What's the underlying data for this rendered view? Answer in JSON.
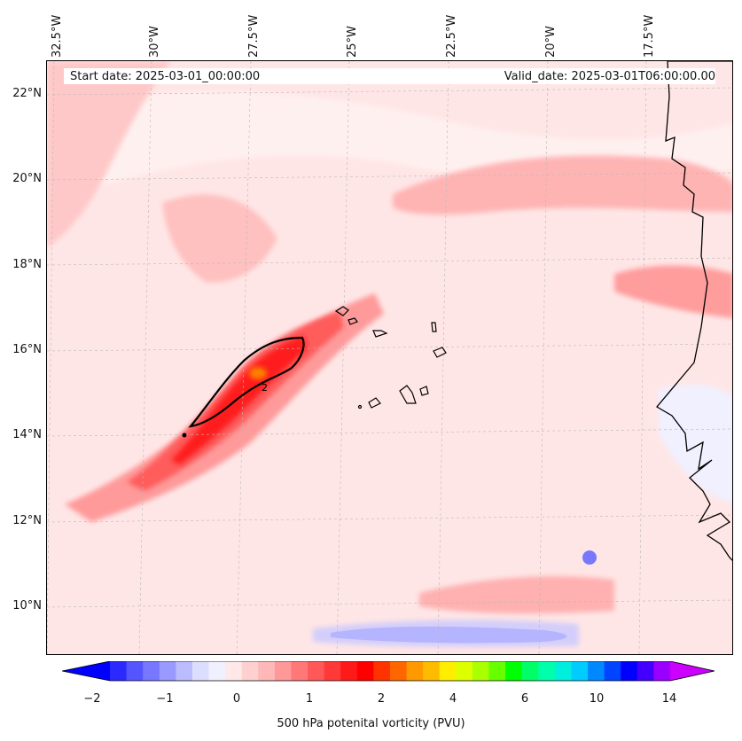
{
  "map": {
    "longitude_labels": [
      "32.5°W",
      "30°W",
      "27.5°W",
      "25°W",
      "22.5°W",
      "20°W",
      "17.5°W"
    ],
    "latitude_labels": [
      "22°N",
      "20°N",
      "18°N",
      "16°N",
      "14°N",
      "12°N",
      "10°N"
    ],
    "contour_label": "2",
    "colors": {
      "land_coast": "#000000",
      "background": "#ffecec"
    }
  },
  "header": {
    "start_date": "Start date: 2025-03-01_00:00:00",
    "valid_date": "Valid_date: 2025-03-01T06:00:00.00"
  },
  "colorbar": {
    "ticks": [
      "−2",
      "−1",
      "0",
      "1",
      "2",
      "4",
      "6",
      "10",
      "14"
    ],
    "label": "500 hPa potenital vorticity (PVU)",
    "colors": [
      "#0000ff",
      "#2a2aff",
      "#5555ff",
      "#7777ff",
      "#9999ff",
      "#bbbbff",
      "#dddeff",
      "#f0f0ff",
      "#ffe8e8",
      "#ffd0d0",
      "#ffb8b8",
      "#ff9898",
      "#ff7878",
      "#ff5858",
      "#ff3838",
      "#ff1a1a",
      "#ff0000",
      "#ff3300",
      "#ff6600",
      "#ff9900",
      "#ffbb00",
      "#ffee00",
      "#ddff00",
      "#aaff00",
      "#66ff00",
      "#00ff00",
      "#00ff66",
      "#00ffaa",
      "#00eedd",
      "#00ccff",
      "#0088ff",
      "#0044ff",
      "#0000ff",
      "#4400ff",
      "#9900ff",
      "#cc00ff"
    ]
  }
}
